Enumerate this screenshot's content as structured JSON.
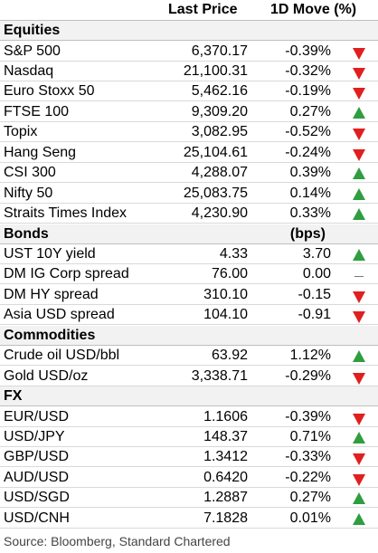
{
  "header": {
    "col_price": "Last Price",
    "col_move": "1D Move (%)"
  },
  "colors": {
    "up": "#2e9e3e",
    "down": "#e01f1f",
    "flat": "#777777"
  },
  "rows": [
    {
      "kind": "section",
      "name": "Equities",
      "price": "",
      "move": "",
      "dir": ""
    },
    {
      "kind": "data",
      "name": "S&P 500",
      "price": "6,370.17",
      "move": "-0.39%",
      "dir": "down"
    },
    {
      "kind": "data",
      "name": "Nasdaq",
      "price": "21,100.31",
      "move": "-0.32%",
      "dir": "down"
    },
    {
      "kind": "data",
      "name": "Euro Stoxx 50",
      "price": "5,462.16",
      "move": "-0.19%",
      "dir": "down"
    },
    {
      "kind": "data",
      "name": "FTSE 100",
      "price": "9,309.20",
      "move": "0.27%",
      "dir": "up"
    },
    {
      "kind": "data",
      "name": "Topix",
      "price": "3,082.95",
      "move": "-0.52%",
      "dir": "down"
    },
    {
      "kind": "data",
      "name": "Hang Seng",
      "price": "25,104.61",
      "move": "-0.24%",
      "dir": "down"
    },
    {
      "kind": "data",
      "name": "CSI 300",
      "price": "4,288.07",
      "move": "0.39%",
      "dir": "up"
    },
    {
      "kind": "data",
      "name": "Nifty 50",
      "price": "25,083.75",
      "move": "0.14%",
      "dir": "up"
    },
    {
      "kind": "data",
      "name": "Straits Times Index",
      "price": "4,230.90",
      "move": "0.33%",
      "dir": "up"
    },
    {
      "kind": "section",
      "name": "Bonds",
      "price": "",
      "move": "(bps)",
      "dir": ""
    },
    {
      "kind": "data",
      "name": "UST 10Y yield",
      "price": "4.33",
      "move": "3.70",
      "dir": "up"
    },
    {
      "kind": "data",
      "name": "DM IG Corp spread",
      "price": "76.00",
      "move": "0.00",
      "dir": "flat"
    },
    {
      "kind": "data",
      "name": "DM HY spread",
      "price": "310.10",
      "move": "-0.15",
      "dir": "down"
    },
    {
      "kind": "data",
      "name": "Asia USD spread",
      "price": "104.10",
      "move": "-0.91",
      "dir": "down"
    },
    {
      "kind": "section",
      "name": "Commodities",
      "price": "",
      "move": "",
      "dir": ""
    },
    {
      "kind": "data",
      "name": "Crude oil USD/bbl",
      "price": "63.92",
      "move": "1.12%",
      "dir": "up"
    },
    {
      "kind": "data",
      "name": "Gold USD/oz",
      "price": "3,338.71",
      "move": "-0.29%",
      "dir": "down"
    },
    {
      "kind": "section",
      "name": "FX",
      "price": "",
      "move": "",
      "dir": ""
    },
    {
      "kind": "data",
      "name": "EUR/USD",
      "price": "1.1606",
      "move": "-0.39%",
      "dir": "down"
    },
    {
      "kind": "data",
      "name": "USD/JPY",
      "price": "148.37",
      "move": "0.71%",
      "dir": "up"
    },
    {
      "kind": "data",
      "name": "GBP/USD",
      "price": "1.3412",
      "move": "-0.33%",
      "dir": "down"
    },
    {
      "kind": "data",
      "name": "AUD/USD",
      "price": "0.6420",
      "move": "-0.22%",
      "dir": "down"
    },
    {
      "kind": "data",
      "name": "USD/SGD",
      "price": "1.2887",
      "move": "0.27%",
      "dir": "up"
    },
    {
      "kind": "data",
      "name": "USD/CNH",
      "price": "7.1828",
      "move": "0.01%",
      "dir": "up"
    }
  ],
  "source": "Source: Bloomberg, Standard Chartered"
}
